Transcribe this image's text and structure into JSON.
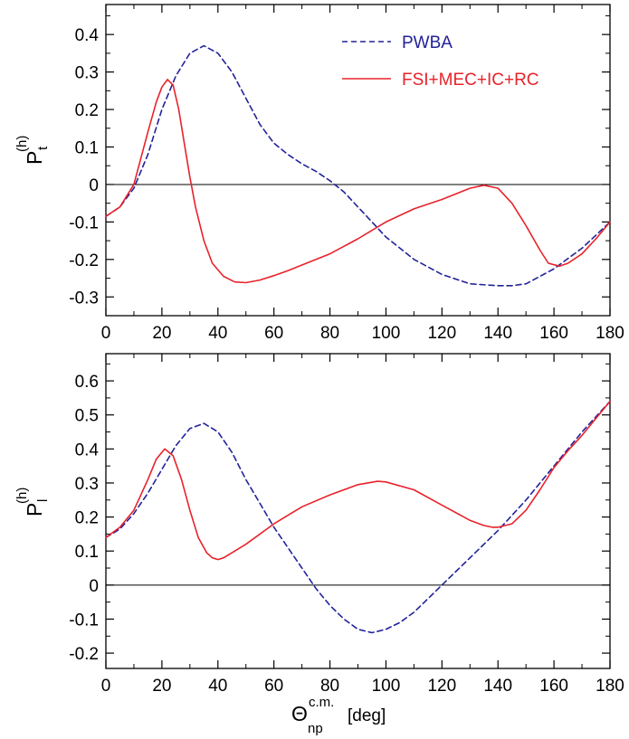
{
  "chart_data": [
    {
      "type": "line",
      "panel": "top",
      "ylabel": {
        "main": "P",
        "sub": "t",
        "sup": "(h)"
      },
      "xlim": [
        0,
        180
      ],
      "ylim": [
        -0.35,
        0.48
      ],
      "xticks": [
        0,
        20,
        40,
        60,
        80,
        100,
        120,
        140,
        160,
        180
      ],
      "yticks": [
        -0.3,
        -0.2,
        -0.1,
        0,
        0.1,
        0.2,
        0.3,
        0.4
      ],
      "ytick_labels": [
        "-0.3",
        "-0.2",
        "-0.1",
        "0",
        "0.1",
        "0.2",
        "0.3",
        "0.4"
      ],
      "legend": {
        "placement": "top-right"
      },
      "series": [
        {
          "name": "PWBA",
          "color": "#22229a",
          "style": "dashed",
          "x": [
            0,
            5,
            10,
            15,
            20,
            25,
            30,
            35,
            40,
            45,
            50,
            55,
            60,
            65,
            70,
            75,
            80,
            85,
            90,
            95,
            100,
            110,
            120,
            130,
            140,
            145,
            150,
            160,
            170,
            180
          ],
          "y": [
            -0.085,
            -0.06,
            -0.01,
            0.08,
            0.2,
            0.29,
            0.35,
            0.37,
            0.35,
            0.3,
            0.23,
            0.16,
            0.11,
            0.08,
            0.055,
            0.035,
            0.01,
            -0.02,
            -0.06,
            -0.1,
            -0.14,
            -0.2,
            -0.24,
            -0.265,
            -0.27,
            -0.27,
            -0.265,
            -0.225,
            -0.17,
            -0.1
          ]
        },
        {
          "name": "FSI+MEC+IC+RC",
          "color": "#e8222a",
          "style": "solid",
          "x": [
            0,
            5,
            10,
            15,
            18,
            20,
            22,
            24,
            26,
            28,
            30,
            32,
            35,
            38,
            42,
            46,
            50,
            55,
            60,
            65,
            70,
            80,
            90,
            100,
            110,
            120,
            130,
            135,
            140,
            145,
            150,
            155,
            158,
            162,
            165,
            170,
            175,
            180
          ],
          "y": [
            -0.085,
            -0.06,
            0.0,
            0.14,
            0.22,
            0.26,
            0.28,
            0.265,
            0.2,
            0.11,
            0.02,
            -0.06,
            -0.15,
            -0.21,
            -0.245,
            -0.26,
            -0.262,
            -0.255,
            -0.243,
            -0.23,
            -0.215,
            -0.185,
            -0.145,
            -0.1,
            -0.065,
            -0.04,
            -0.01,
            -0.002,
            -0.01,
            -0.05,
            -0.11,
            -0.175,
            -0.21,
            -0.218,
            -0.21,
            -0.185,
            -0.145,
            -0.1
          ]
        }
      ]
    },
    {
      "type": "line",
      "panel": "bottom",
      "ylabel": {
        "main": "P",
        "sub": "l",
        "sup": "(h)"
      },
      "xlabel": {
        "main": "Θ",
        "sup": "c.m.",
        "sub": "np",
        "unit": "[deg]"
      },
      "xlim": [
        0,
        180
      ],
      "ylim": [
        -0.245,
        0.68
      ],
      "xticks": [
        0,
        20,
        40,
        60,
        80,
        100,
        120,
        140,
        160,
        180
      ],
      "yticks": [
        -0.2,
        -0.1,
        0,
        0.1,
        0.2,
        0.3,
        0.4,
        0.5,
        0.6
      ],
      "ytick_labels": [
        "-0.2",
        "-0.1",
        "0",
        "0.1",
        "0.2",
        "0.3",
        "0.4",
        "0.5",
        "0.6"
      ],
      "series": [
        {
          "name": "PWBA",
          "color": "#22229a",
          "style": "dashed",
          "x": [
            0,
            5,
            10,
            15,
            20,
            25,
            30,
            35,
            40,
            45,
            50,
            55,
            60,
            65,
            70,
            75,
            80,
            85,
            90,
            95,
            100,
            105,
            110,
            115,
            120,
            130,
            140,
            150,
            160,
            170,
            180
          ],
          "y": [
            0.14,
            0.165,
            0.21,
            0.27,
            0.34,
            0.41,
            0.46,
            0.475,
            0.45,
            0.39,
            0.31,
            0.24,
            0.17,
            0.11,
            0.05,
            -0.01,
            -0.06,
            -0.1,
            -0.13,
            -0.14,
            -0.13,
            -0.11,
            -0.08,
            -0.04,
            0.0,
            0.08,
            0.16,
            0.25,
            0.35,
            0.45,
            0.54
          ]
        },
        {
          "name": "FSI+MEC+IC+RC",
          "color": "#e8222a",
          "style": "solid",
          "x": [
            0,
            5,
            10,
            15,
            18,
            21,
            24,
            27,
            30,
            33,
            36,
            38,
            40,
            42,
            45,
            50,
            60,
            70,
            80,
            90,
            97,
            100,
            110,
            120,
            130,
            135,
            138,
            140,
            145,
            150,
            155,
            160,
            165,
            170,
            175,
            180
          ],
          "y": [
            0.14,
            0.17,
            0.22,
            0.31,
            0.37,
            0.4,
            0.38,
            0.31,
            0.22,
            0.14,
            0.095,
            0.08,
            0.075,
            0.08,
            0.095,
            0.12,
            0.18,
            0.23,
            0.265,
            0.295,
            0.305,
            0.303,
            0.28,
            0.235,
            0.19,
            0.175,
            0.17,
            0.17,
            0.18,
            0.22,
            0.28,
            0.345,
            0.395,
            0.44,
            0.49,
            0.54
          ]
        }
      ]
    }
  ]
}
